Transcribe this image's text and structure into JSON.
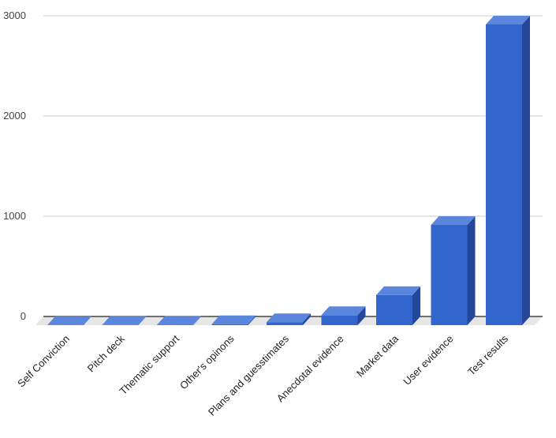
{
  "chart_data": {
    "type": "bar",
    "title": "",
    "xlabel": "",
    "ylabel": "",
    "ylim": [
      0,
      3000
    ],
    "yticks": [
      0,
      1000,
      2000,
      3000
    ],
    "grid": true,
    "categories": [
      "Self Conviction",
      "Pitch deck",
      "Thematic support",
      "Other's opinons",
      "Plans and guesstimates",
      "Anecdotal evidence",
      "Market data",
      "User evidence",
      "Test results"
    ],
    "values": [
      1,
      2,
      3,
      10,
      30,
      100,
      300,
      1000,
      3000
    ],
    "colors": {
      "front": "#3366cc",
      "top": "#5a86dd",
      "side": "#24479a",
      "floor": "#e6e6e6",
      "grid": "#cccccc",
      "axis": "#222222"
    }
  }
}
